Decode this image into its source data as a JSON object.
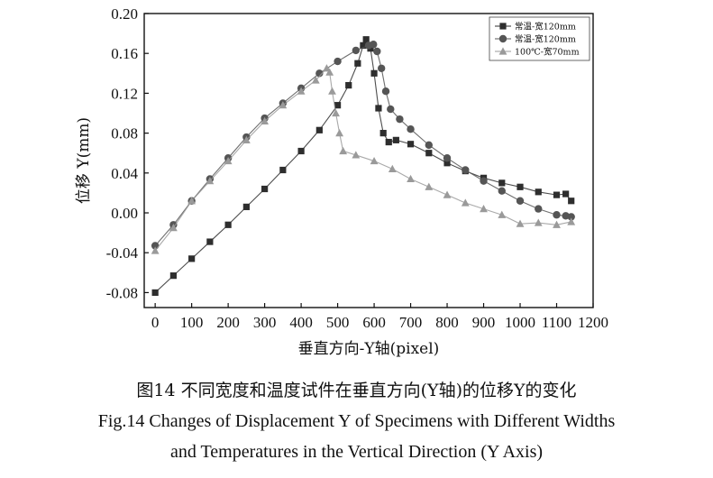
{
  "chart_data": {
    "type": "scatter",
    "xlabel": "垂直方向-Y轴(pixel)",
    "ylabel": "位移 Y(mm)",
    "xlim": [
      -30,
      1200
    ],
    "ylim": [
      -0.095,
      0.2
    ],
    "x_ticks": [
      0,
      100,
      200,
      300,
      400,
      500,
      600,
      700,
      800,
      900,
      1000,
      1100,
      1200
    ],
    "y_ticks": [
      -0.08,
      -0.04,
      0.0,
      0.04,
      0.08,
      0.12,
      0.16,
      0.2
    ],
    "x_tick_labels": [
      "0",
      "100",
      "200",
      "300",
      "400",
      "500",
      "600",
      "700",
      "800",
      "900",
      "1000",
      "1100",
      "1200"
    ],
    "y_tick_labels": [
      "-0.08",
      "-0.04",
      "0.00",
      "0.04",
      "0.08",
      "0.12",
      "0.16",
      "0.20"
    ],
    "legend_position": "top-right",
    "series": [
      {
        "name": "常温-宽120mm",
        "marker": "square",
        "color": "#2e2e2e",
        "points": [
          [
            0,
            -0.08
          ],
          [
            50,
            -0.063
          ],
          [
            100,
            -0.046
          ],
          [
            150,
            -0.029
          ],
          [
            200,
            -0.012
          ],
          [
            250,
            0.006
          ],
          [
            300,
            0.024
          ],
          [
            350,
            0.043
          ],
          [
            400,
            0.062
          ],
          [
            450,
            0.083
          ],
          [
            500,
            0.108
          ],
          [
            530,
            0.128
          ],
          [
            555,
            0.15
          ],
          [
            570,
            0.168
          ],
          [
            578,
            0.174
          ],
          [
            590,
            0.165
          ],
          [
            600,
            0.14
          ],
          [
            612,
            0.105
          ],
          [
            625,
            0.08
          ],
          [
            640,
            0.071
          ],
          [
            660,
            0.073
          ],
          [
            700,
            0.069
          ],
          [
            750,
            0.06
          ],
          [
            800,
            0.05
          ],
          [
            850,
            0.042
          ],
          [
            900,
            0.035
          ],
          [
            950,
            0.03
          ],
          [
            1000,
            0.026
          ],
          [
            1050,
            0.021
          ],
          [
            1100,
            0.018
          ],
          [
            1125,
            0.019
          ],
          [
            1140,
            0.012
          ]
        ]
      },
      {
        "name": "常温-宽120mm",
        "marker": "circle",
        "color": "#555555",
        "points": [
          [
            0,
            -0.033
          ],
          [
            50,
            -0.012
          ],
          [
            100,
            0.012
          ],
          [
            150,
            0.034
          ],
          [
            200,
            0.055
          ],
          [
            250,
            0.076
          ],
          [
            300,
            0.095
          ],
          [
            350,
            0.11
          ],
          [
            400,
            0.125
          ],
          [
            450,
            0.14
          ],
          [
            500,
            0.152
          ],
          [
            550,
            0.163
          ],
          [
            585,
            0.168
          ],
          [
            598,
            0.169
          ],
          [
            608,
            0.162
          ],
          [
            620,
            0.145
          ],
          [
            632,
            0.122
          ],
          [
            645,
            0.104
          ],
          [
            670,
            0.094
          ],
          [
            700,
            0.084
          ],
          [
            750,
            0.068
          ],
          [
            800,
            0.055
          ],
          [
            850,
            0.043
          ],
          [
            900,
            0.032
          ],
          [
            950,
            0.022
          ],
          [
            1000,
            0.012
          ],
          [
            1050,
            0.004
          ],
          [
            1100,
            -0.002
          ],
          [
            1125,
            -0.003
          ],
          [
            1140,
            -0.004
          ]
        ]
      },
      {
        "name": "100℃-宽70mm",
        "marker": "triangle",
        "color": "#9a9a9a",
        "points": [
          [
            0,
            -0.038
          ],
          [
            50,
            -0.015
          ],
          [
            100,
            0.012
          ],
          [
            150,
            0.032
          ],
          [
            200,
            0.052
          ],
          [
            250,
            0.073
          ],
          [
            300,
            0.092
          ],
          [
            350,
            0.108
          ],
          [
            400,
            0.122
          ],
          [
            440,
            0.133
          ],
          [
            470,
            0.145
          ],
          [
            478,
            0.141
          ],
          [
            485,
            0.122
          ],
          [
            495,
            0.1
          ],
          [
            505,
            0.08
          ],
          [
            515,
            0.062
          ],
          [
            550,
            0.058
          ],
          [
            600,
            0.052
          ],
          [
            650,
            0.044
          ],
          [
            700,
            0.034
          ],
          [
            750,
            0.026
          ],
          [
            800,
            0.018
          ],
          [
            850,
            0.01
          ],
          [
            900,
            0.004
          ],
          [
            950,
            -0.002
          ],
          [
            1000,
            -0.011
          ],
          [
            1050,
            -0.01
          ],
          [
            1100,
            -0.012
          ],
          [
            1140,
            -0.009
          ]
        ]
      }
    ]
  },
  "caption": {
    "chinese": "图14  不同宽度和温度试件在垂直方向(Y轴)的位移Y的变化",
    "english_line1": "Fig.14 Changes of Displacement Y of Specimens with Different Widths",
    "english_line2": "and Temperatures in the Vertical Direction (Y Axis)"
  }
}
